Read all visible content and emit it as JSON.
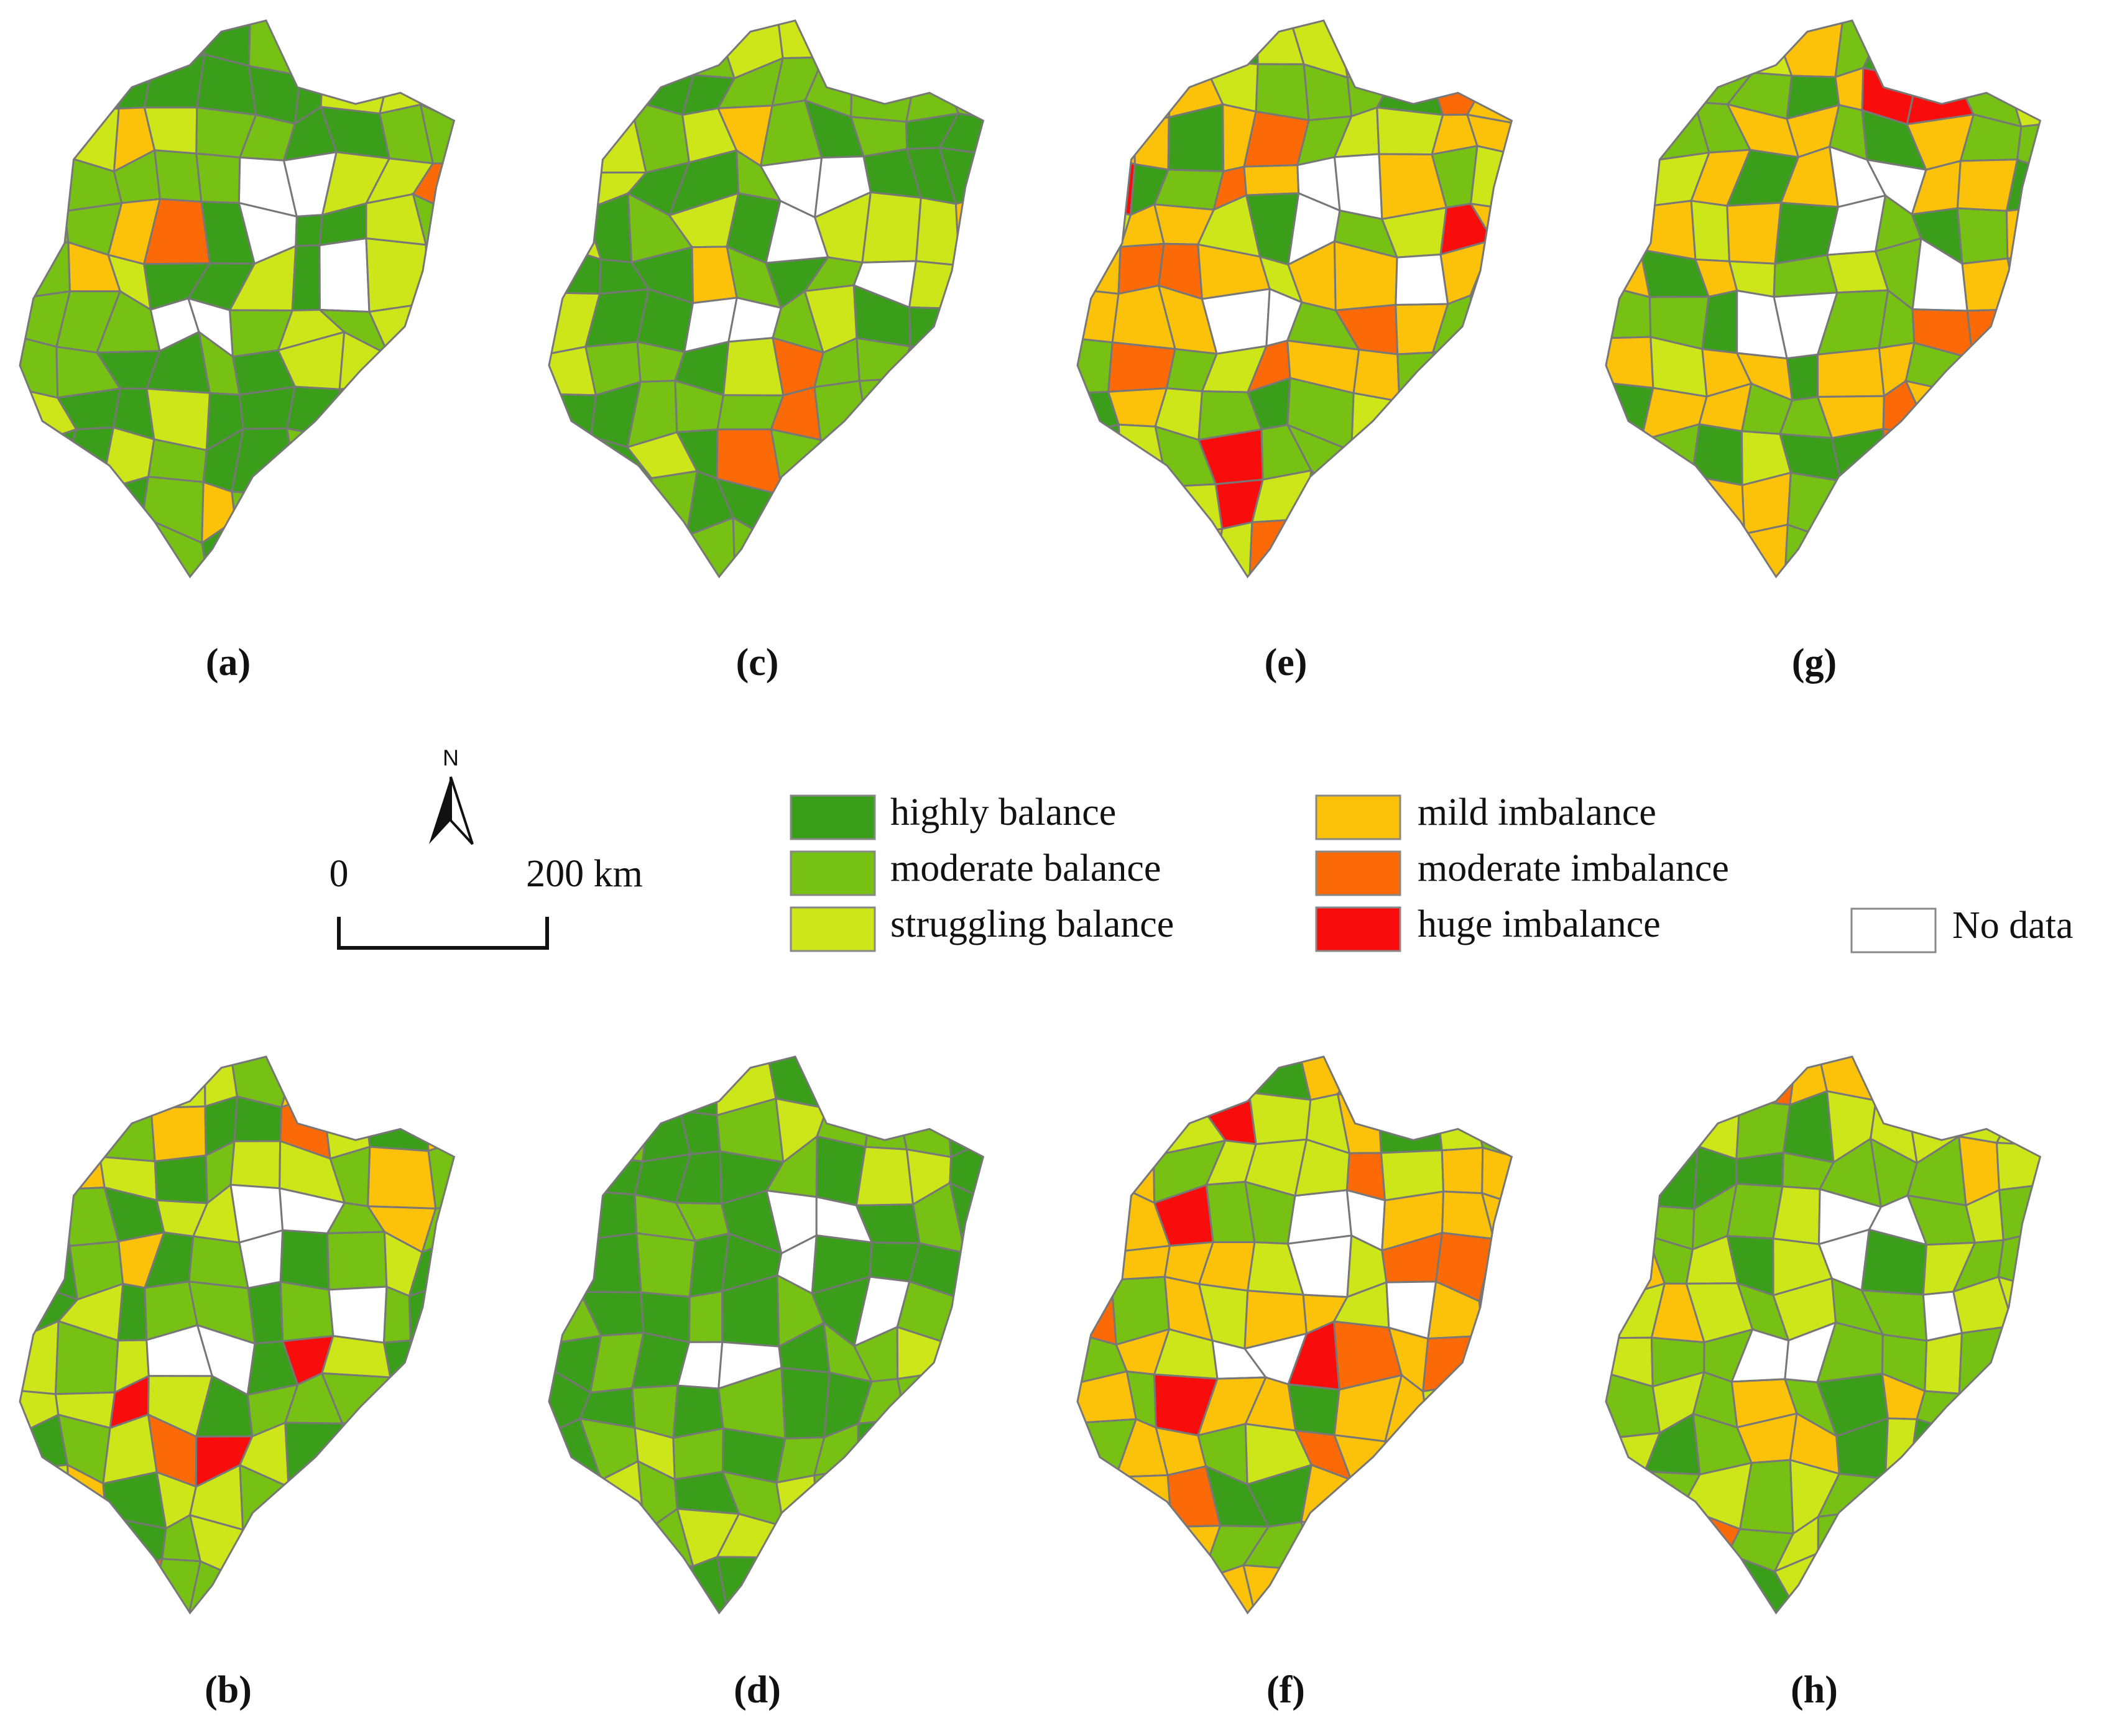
{
  "panels": [
    {
      "label": "(a)"
    },
    {
      "label": "(c)"
    },
    {
      "label": "(e)"
    },
    {
      "label": "(g)"
    },
    {
      "label": "(b)"
    },
    {
      "label": "(d)"
    },
    {
      "label": "(f)"
    },
    {
      "label": "(h)"
    }
  ],
  "legend": {
    "items": [
      {
        "label": "highly balance",
        "color": "#3a9e1a"
      },
      {
        "label": "moderate balance",
        "color": "#76c113"
      },
      {
        "label": "struggling balance",
        "color": "#cde61a"
      },
      {
        "label": "mild imbalance",
        "color": "#fcc20a"
      },
      {
        "label": "moderate imbalance",
        "color": "#fb6a06"
      },
      {
        "label": "huge imbalance",
        "color": "#f80c0c"
      }
    ],
    "no_data": {
      "label": "No data",
      "color": "#ffffff"
    }
  },
  "scale_bar": {
    "north": "N",
    "start": "0",
    "end": "200 km"
  }
}
